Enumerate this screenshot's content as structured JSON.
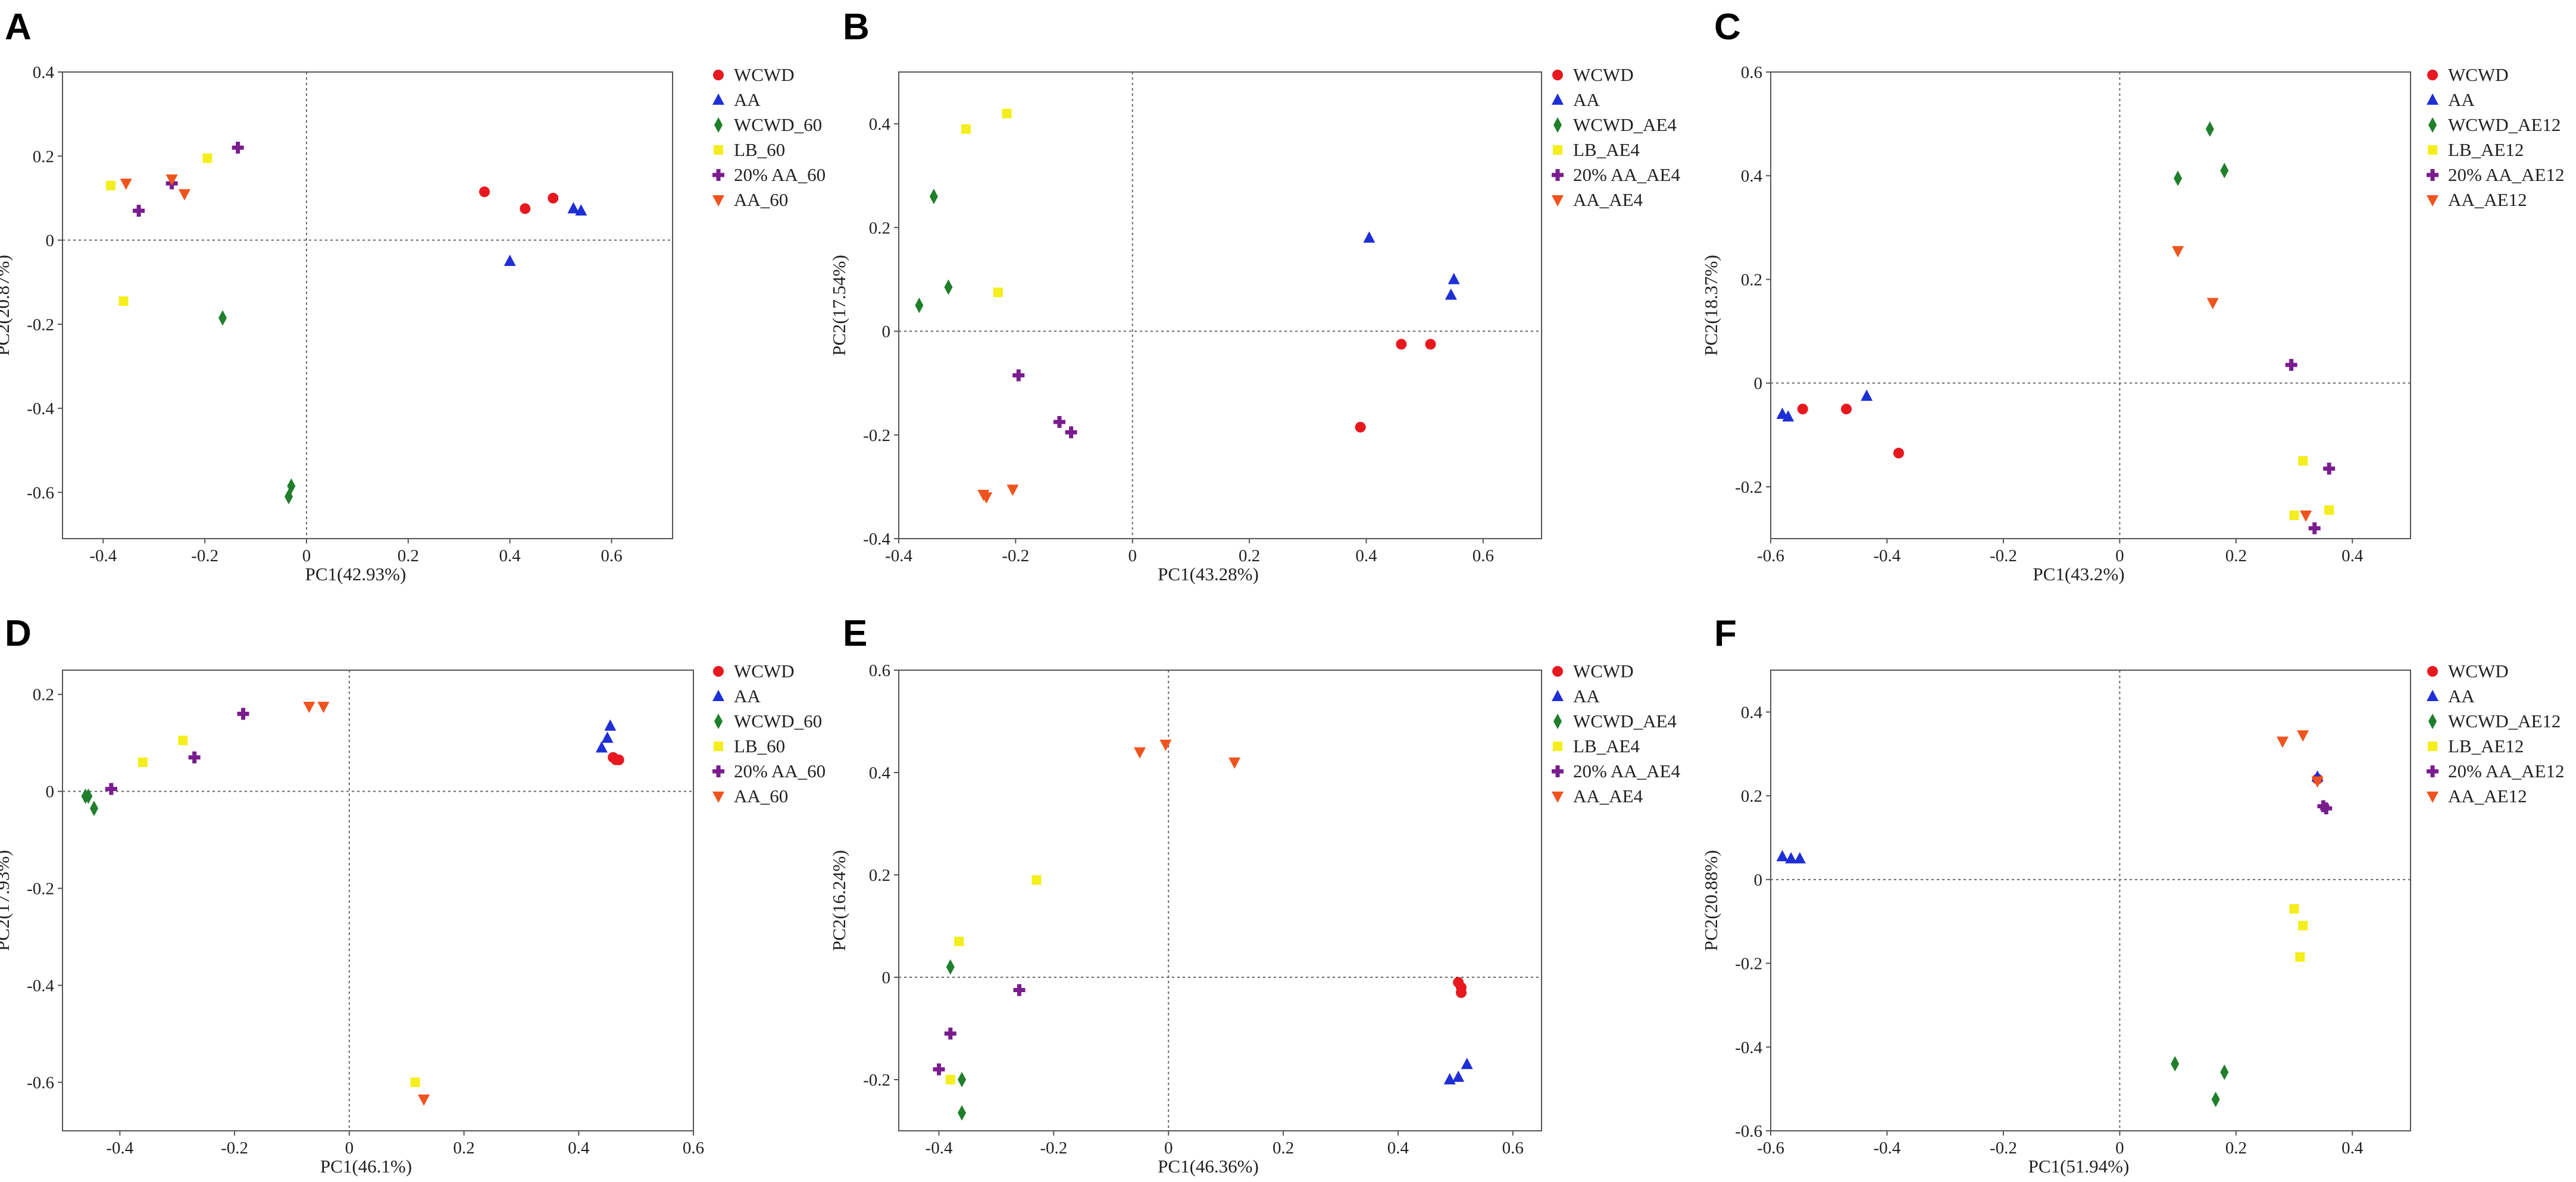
{
  "colors": {
    "WCWD": "#e8181f",
    "AA": "#1f2fd6",
    "WCWD_x": "#1f7f2a",
    "LB": "#f4ee1c",
    "AA20": "#7a1c8e",
    "AA_x": "#f0541e"
  },
  "chart_data": [
    {
      "panel": "A",
      "type": "scatter",
      "xlabel": "PC1(42.93%)",
      "ylabel": "PC2(20.87%)",
      "xlim": [
        -0.48,
        0.72
      ],
      "ylim": [
        -0.71,
        0.4
      ],
      "xticks": [
        "-0.4",
        "-0.2",
        "0",
        "0.2",
        "0.4",
        "0.6"
      ],
      "xtick_values": [
        -0.4,
        -0.2,
        0,
        0.2,
        0.4,
        0.6
      ],
      "yticks": [
        "0.4",
        "0.2",
        "0",
        "-0.2",
        "-0.4",
        "-0.6"
      ],
      "ytick_values": [
        0.4,
        0.2,
        0,
        -0.2,
        -0.4,
        -0.6
      ],
      "series": [
        {
          "name": "WCWD",
          "color": "#e8181f",
          "marker": "circle",
          "points": [
            [
              0.35,
              0.115
            ],
            [
              0.43,
              0.075
            ],
            [
              0.485,
              0.1
            ]
          ]
        },
        {
          "name": "AA",
          "color": "#1f2fd6",
          "marker": "triangle",
          "points": [
            [
              0.4,
              -0.05
            ],
            [
              0.525,
              0.075
            ],
            [
              0.54,
              0.07
            ]
          ]
        },
        {
          "name": "WCWD_60",
          "color": "#1f7f2a",
          "marker": "diamond",
          "points": [
            [
              -0.165,
              -0.185
            ],
            [
              -0.03,
              -0.585
            ],
            [
              -0.035,
              -0.61
            ]
          ]
        },
        {
          "name": "LB_60",
          "color": "#f4ee1c",
          "marker": "square",
          "points": [
            [
              -0.385,
              0.13
            ],
            [
              -0.36,
              -0.145
            ],
            [
              -0.195,
              0.195
            ]
          ]
        },
        {
          "name": "20% AA_60",
          "color": "#7a1c8e",
          "marker": "plus",
          "points": [
            [
              -0.33,
              0.07
            ],
            [
              -0.265,
              0.135
            ],
            [
              -0.135,
              0.22
            ]
          ]
        },
        {
          "name": "AA_60",
          "color": "#f0541e",
          "marker": "triangle-down",
          "points": [
            [
              -0.355,
              0.135
            ],
            [
              -0.265,
              0.145
            ],
            [
              -0.24,
              0.11
            ]
          ]
        }
      ]
    },
    {
      "panel": "B",
      "type": "scatter",
      "xlabel": "PC1(43.28%)",
      "ylabel": "PC2(17.54%)",
      "xlim": [
        -0.4,
        0.7
      ],
      "ylim": [
        -0.4,
        0.5
      ],
      "xticks": [
        "-0.4",
        "-0.2",
        "0",
        "0.2",
        "0.4",
        "0.6"
      ],
      "xtick_values": [
        -0.4,
        -0.2,
        0,
        0.2,
        0.4,
        0.6
      ],
      "yticks": [
        "0.4",
        "0.2",
        "0",
        "-0.2",
        "-0.4"
      ],
      "ytick_values": [
        0.4,
        0.2,
        0,
        -0.2,
        -0.4
      ],
      "series": [
        {
          "name": "WCWD",
          "color": "#e8181f",
          "marker": "circle",
          "points": [
            [
              0.39,
              -0.185
            ],
            [
              0.46,
              -0.025
            ],
            [
              0.51,
              -0.025
            ]
          ]
        },
        {
          "name": "AA",
          "color": "#1f2fd6",
          "marker": "triangle",
          "points": [
            [
              0.405,
              0.18
            ],
            [
              0.55,
              0.1
            ],
            [
              0.545,
              0.07
            ]
          ]
        },
        {
          "name": "WCWD_AE4",
          "color": "#1f7f2a",
          "marker": "diamond",
          "points": [
            [
              -0.34,
              0.26
            ],
            [
              -0.365,
              0.05
            ],
            [
              -0.315,
              0.085
            ]
          ]
        },
        {
          "name": "LB_AE4",
          "color": "#f4ee1c",
          "marker": "square",
          "points": [
            [
              -0.285,
              0.39
            ],
            [
              -0.215,
              0.42
            ],
            [
              -0.23,
              0.075
            ]
          ]
        },
        {
          "name": "20% AA_AE4",
          "color": "#7a1c8e",
          "marker": "plus",
          "points": [
            [
              -0.195,
              -0.085
            ],
            [
              -0.125,
              -0.175
            ],
            [
              -0.105,
              -0.195
            ]
          ]
        },
        {
          "name": "AA_AE4",
          "color": "#f0541e",
          "marker": "triangle-down",
          "points": [
            [
              -0.255,
              -0.315
            ],
            [
              -0.25,
              -0.32
            ],
            [
              -0.205,
              -0.305
            ]
          ]
        }
      ]
    },
    {
      "panel": "C",
      "type": "scatter",
      "xlabel": "PC1(43.2%)",
      "ylabel": "PC2(18.37%)",
      "xlim": [
        -0.6,
        0.5
      ],
      "ylim": [
        -0.3,
        0.6
      ],
      "xticks": [
        "-0.6",
        "-0.4",
        "-0.2",
        "0",
        "0.2",
        "0.4"
      ],
      "xtick_values": [
        -0.6,
        -0.4,
        -0.2,
        0,
        0.2,
        0.4
      ],
      "yticks": [
        "0.6",
        "0.4",
        "0.2",
        "0",
        "-0.2"
      ],
      "ytick_values": [
        0.6,
        0.4,
        0.2,
        0,
        -0.2
      ],
      "series": [
        {
          "name": "WCWD",
          "color": "#e8181f",
          "marker": "circle",
          "points": [
            [
              -0.545,
              -0.05
            ],
            [
              -0.47,
              -0.05
            ],
            [
              -0.38,
              -0.135
            ]
          ]
        },
        {
          "name": "AA",
          "color": "#1f2fd6",
          "marker": "triangle",
          "points": [
            [
              -0.58,
              -0.06
            ],
            [
              -0.57,
              -0.065
            ],
            [
              -0.435,
              -0.025
            ]
          ]
        },
        {
          "name": "WCWD_AE12",
          "color": "#1f7f2a",
          "marker": "diamond",
          "points": [
            [
              0.1,
              0.395
            ],
            [
              0.155,
              0.49
            ],
            [
              0.18,
              0.41
            ]
          ]
        },
        {
          "name": "LB_AE12",
          "color": "#f4ee1c",
          "marker": "square",
          "points": [
            [
              0.3,
              -0.255
            ],
            [
              0.315,
              -0.15
            ],
            [
              0.36,
              -0.245
            ]
          ]
        },
        {
          "name": "20% AA_AE12",
          "color": "#7a1c8e",
          "marker": "plus",
          "points": [
            [
              0.295,
              0.035
            ],
            [
              0.335,
              -0.28
            ],
            [
              0.36,
              -0.165
            ]
          ]
        },
        {
          "name": "AA_AE12",
          "color": "#f0541e",
          "marker": "triangle-down",
          "points": [
            [
              0.1,
              0.255
            ],
            [
              0.16,
              0.155
            ],
            [
              0.32,
              -0.255
            ]
          ]
        }
      ]
    },
    {
      "panel": "D",
      "type": "scatter",
      "xlabel": "PC1(46.1%)",
      "ylabel": "PC2(17.93%)",
      "xlim": [
        -0.5,
        0.6
      ],
      "ylim": [
        -0.7,
        0.25
      ],
      "xticks": [
        "-0.4",
        "-0.2",
        "0",
        "0.2",
        "0.4",
        "0.6"
      ],
      "xtick_values": [
        -0.4,
        -0.2,
        0,
        0.2,
        0.4,
        0.6
      ],
      "yticks": [
        "0.2",
        "0",
        "-0.2",
        "-0.4",
        "-0.6"
      ],
      "ytick_values": [
        0.2,
        0,
        -0.2,
        -0.4,
        -0.6
      ],
      "series": [
        {
          "name": "WCWD",
          "color": "#e8181f",
          "marker": "circle",
          "points": [
            [
              0.46,
              0.07
            ],
            [
              0.465,
              0.065
            ],
            [
              0.47,
              0.065
            ]
          ]
        },
        {
          "name": "AA",
          "color": "#1f2fd6",
          "marker": "triangle",
          "points": [
            [
              0.44,
              0.09
            ],
            [
              0.45,
              0.11
            ],
            [
              0.455,
              0.135
            ]
          ]
        },
        {
          "name": "WCWD_60",
          "color": "#1f7f2a",
          "marker": "diamond",
          "points": [
            [
              -0.46,
              -0.01
            ],
            [
              -0.455,
              -0.01
            ],
            [
              -0.445,
              -0.035
            ]
          ]
        },
        {
          "name": "LB_60",
          "color": "#f4ee1c",
          "marker": "square",
          "points": [
            [
              -0.36,
              0.06
            ],
            [
              -0.29,
              0.105
            ],
            [
              0.115,
              -0.6
            ]
          ]
        },
        {
          "name": "20% AA_60",
          "color": "#7a1c8e",
          "marker": "plus",
          "points": [
            [
              -0.415,
              0.005
            ],
            [
              -0.27,
              0.07
            ],
            [
              -0.185,
              0.16
            ]
          ]
        },
        {
          "name": "AA_60",
          "color": "#f0541e",
          "marker": "triangle-down",
          "points": [
            [
              -0.07,
              0.175
            ],
            [
              -0.045,
              0.175
            ],
            [
              0.13,
              -0.635
            ]
          ]
        }
      ]
    },
    {
      "panel": "E",
      "type": "scatter",
      "xlabel": "PC1(46.36%)",
      "ylabel": "PC2(16.24%)",
      "xlim": [
        -0.47,
        0.65
      ],
      "ylim": [
        -0.3,
        0.6
      ],
      "xticks": [
        "-0.4",
        "-0.2",
        "0",
        "0.2",
        "0.4",
        "0.6"
      ],
      "xtick_values": [
        -0.4,
        -0.2,
        0,
        0.2,
        0.4,
        0.6
      ],
      "yticks": [
        "0.6",
        "0.4",
        "0.2",
        "0",
        "-0.2"
      ],
      "ytick_values": [
        0.6,
        0.4,
        0.2,
        0,
        -0.2
      ],
      "series": [
        {
          "name": "WCWD",
          "color": "#e8181f",
          "marker": "circle",
          "points": [
            [
              0.505,
              -0.01
            ],
            [
              0.51,
              -0.02
            ],
            [
              0.51,
              -0.03
            ]
          ]
        },
        {
          "name": "AA",
          "color": "#1f2fd6",
          "marker": "triangle",
          "points": [
            [
              0.49,
              -0.2
            ],
            [
              0.505,
              -0.195
            ],
            [
              0.52,
              -0.17
            ]
          ]
        },
        {
          "name": "WCWD_AE4",
          "color": "#1f7f2a",
          "marker": "diamond",
          "points": [
            [
              -0.38,
              0.02
            ],
            [
              -0.36,
              -0.2
            ],
            [
              -0.36,
              -0.265
            ]
          ]
        },
        {
          "name": "LB_AE4",
          "color": "#f4ee1c",
          "marker": "square",
          "points": [
            [
              -0.365,
              0.07
            ],
            [
              -0.23,
              0.19
            ],
            [
              -0.38,
              -0.2
            ]
          ]
        },
        {
          "name": "20% AA_AE4",
          "color": "#7a1c8e",
          "marker": "plus",
          "points": [
            [
              -0.26,
              -0.025
            ],
            [
              -0.38,
              -0.11
            ],
            [
              -0.4,
              -0.18
            ]
          ]
        },
        {
          "name": "AA_AE4",
          "color": "#f0541e",
          "marker": "triangle-down",
          "points": [
            [
              -0.05,
              0.44
            ],
            [
              -0.005,
              0.455
            ],
            [
              0.115,
              0.42
            ]
          ]
        }
      ]
    },
    {
      "panel": "F",
      "type": "scatter",
      "xlabel": "PC1(51.94%)",
      "ylabel": "PC2(20.88%)",
      "xlim": [
        -0.6,
        0.5
      ],
      "ylim": [
        -0.6,
        0.5
      ],
      "xticks": [
        "-0.6",
        "-0.4",
        "-0.2",
        "0",
        "0.2",
        "0.4"
      ],
      "xtick_values": [
        -0.6,
        -0.4,
        -0.2,
        0,
        0.2,
        0.4
      ],
      "yticks": [
        "0.4",
        "0.2",
        "0",
        "-0.2",
        "-0.4",
        "-0.6"
      ],
      "ytick_values": [
        0.4,
        0.2,
        0,
        -0.2,
        -0.4,
        -0.6
      ],
      "series": [
        {
          "name": "WCWD",
          "color": "#e8181f",
          "marker": "circle",
          "points": [
            [
              0.34,
              0.24
            ]
          ]
        },
        {
          "name": "AA",
          "color": "#1f2fd6",
          "marker": "triangle",
          "points": [
            [
              -0.58,
              0.055
            ],
            [
              -0.565,
              0.05
            ],
            [
              -0.55,
              0.05
            ],
            [
              0.34,
              0.245
            ]
          ]
        },
        {
          "name": "WCWD_AE12",
          "color": "#1f7f2a",
          "marker": "diamond",
          "points": [
            [
              0.095,
              -0.44
            ],
            [
              0.165,
              -0.525
            ],
            [
              0.18,
              -0.46
            ]
          ]
        },
        {
          "name": "LB_AE12",
          "color": "#f4ee1c",
          "marker": "square",
          "points": [
            [
              0.3,
              -0.07
            ],
            [
              0.315,
              -0.11
            ],
            [
              0.31,
              -0.185
            ]
          ]
        },
        {
          "name": "20% AA_AE12",
          "color": "#7a1c8e",
          "marker": "plus",
          "points": [
            [
              0.35,
              0.175
            ],
            [
              0.355,
              0.17
            ]
          ]
        },
        {
          "name": "AA_AE12",
          "color": "#f0541e",
          "marker": "triangle-down",
          "points": [
            [
              0.28,
              0.33
            ],
            [
              0.315,
              0.345
            ],
            [
              0.34,
              0.235
            ]
          ]
        }
      ]
    }
  ]
}
